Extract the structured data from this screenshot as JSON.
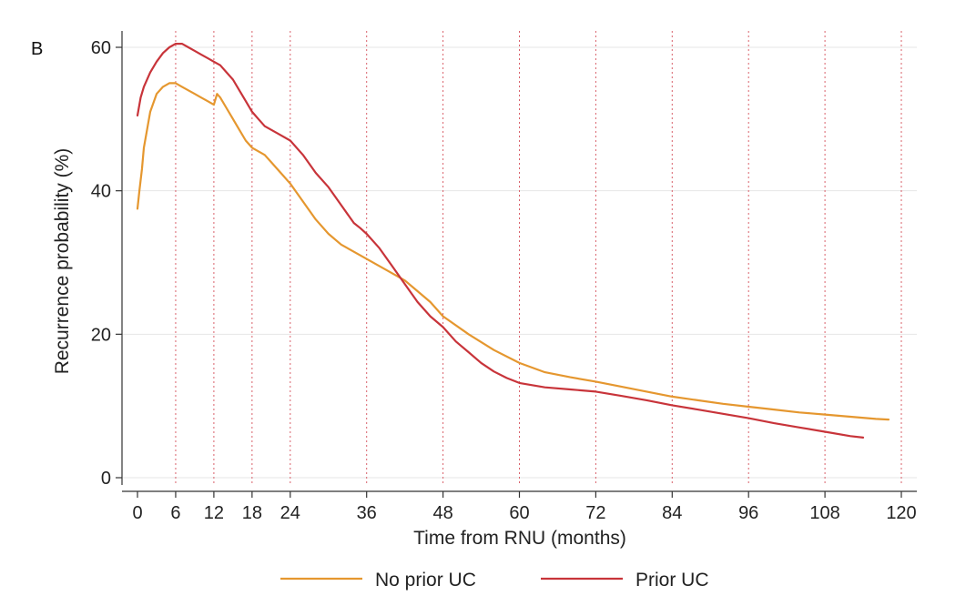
{
  "panel_label": "B",
  "colors": {
    "no_prior_uc": "#e5972f",
    "prior_uc": "#c8343a",
    "reference_lines": "#d9606a",
    "grid": "#e6e6e6"
  },
  "chart_data": {
    "type": "line",
    "title": "",
    "xlabel": "Time from RNU (months)",
    "ylabel": "Recurrence probability (%)",
    "xlim": [
      0,
      120
    ],
    "ylim": [
      0,
      60
    ],
    "xticks": [
      0,
      6,
      12,
      18,
      24,
      36,
      48,
      60,
      72,
      84,
      96,
      108,
      120
    ],
    "yticks": [
      0,
      20,
      40,
      60
    ],
    "reference_x": [
      6,
      12,
      18,
      24,
      36,
      48,
      60,
      72,
      84,
      96,
      108,
      120
    ],
    "grid": true,
    "legend_position": "bottom",
    "series": [
      {
        "name": "No prior UC",
        "color": "#e5972f",
        "x": [
          0,
          0.3,
          0.7,
          1,
          1.5,
          2,
          3,
          4,
          5,
          5.5,
          6,
          7,
          8,
          9,
          10,
          11,
          12,
          12.5,
          13,
          14,
          15,
          16,
          17,
          18,
          19,
          20,
          21,
          22,
          23,
          24,
          26,
          28,
          30,
          32,
          34,
          36,
          38,
          40,
          42,
          44,
          46,
          48,
          52,
          56,
          60,
          64,
          68,
          72,
          76,
          80,
          84,
          88,
          92,
          96,
          100,
          104,
          108,
          112,
          116,
          118
        ],
        "y": [
          37.5,
          40,
          43,
          46,
          48.5,
          51,
          53.5,
          54.5,
          55,
          55,
          55,
          54.5,
          54,
          53.5,
          53,
          52.5,
          52,
          53.5,
          53,
          51.5,
          50,
          48.5,
          47,
          46,
          45.5,
          45,
          44,
          43,
          42,
          41,
          38.5,
          36,
          34,
          32.5,
          31.5,
          30.5,
          29.5,
          28.5,
          27.5,
          26,
          24.5,
          22.5,
          20,
          17.8,
          16,
          14.7,
          14,
          13.4,
          12.7,
          12,
          11.3,
          10.8,
          10.3,
          9.9,
          9.5,
          9.1,
          8.8,
          8.5,
          8.2,
          8.1
        ]
      },
      {
        "name": "Prior UC",
        "color": "#c8343a",
        "x": [
          0,
          0.5,
          1,
          2,
          3,
          4,
          5,
          6,
          7,
          8,
          9,
          10,
          11,
          12,
          13,
          14,
          15,
          16,
          17,
          18,
          19,
          20,
          22,
          24,
          26,
          28,
          30,
          32,
          34,
          35,
          36,
          38,
          40,
          42,
          44,
          46,
          48,
          50,
          52,
          54,
          56,
          58,
          60,
          64,
          68,
          72,
          76,
          80,
          84,
          88,
          92,
          96,
          100,
          104,
          108,
          112,
          114
        ],
        "y": [
          50.5,
          53,
          54.5,
          56.5,
          58,
          59.2,
          60,
          60.5,
          60.5,
          60,
          59.5,
          59,
          58.5,
          58,
          57.5,
          56.5,
          55.5,
          54,
          52.5,
          51,
          50,
          49,
          48,
          47,
          45,
          42.5,
          40.5,
          38,
          35.5,
          34.8,
          34,
          32,
          29.5,
          27,
          24.5,
          22.5,
          21,
          19,
          17.5,
          16,
          14.8,
          13.9,
          13.2,
          12.6,
          12.3,
          12,
          11.4,
          10.8,
          10.1,
          9.5,
          8.9,
          8.3,
          7.6,
          7,
          6.4,
          5.8,
          5.6
        ]
      }
    ]
  }
}
